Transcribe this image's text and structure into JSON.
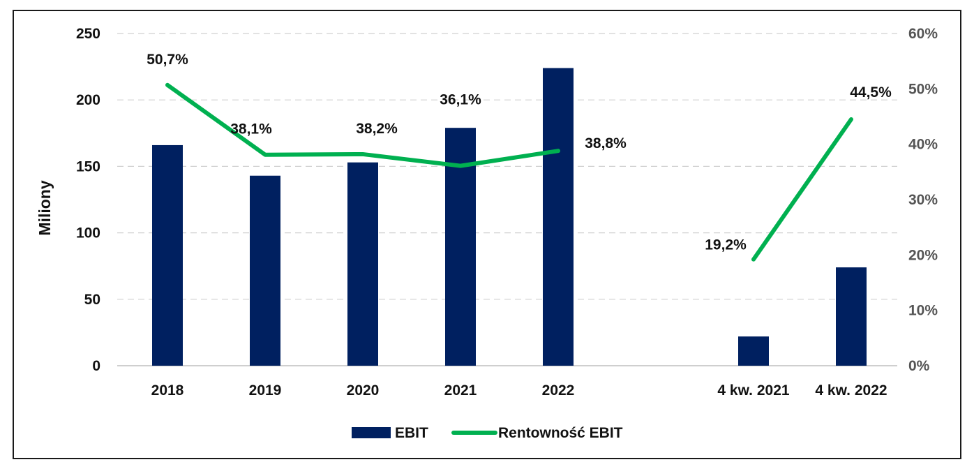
{
  "chart_data": {
    "type": "bar+line",
    "categories": [
      "2018",
      "2019",
      "2020",
      "2021",
      "2022",
      "4 kw. 2021",
      "4 kw. 2022"
    ],
    "series": [
      {
        "name": "EBIT",
        "type": "bar",
        "axis": "left",
        "color": "#002060",
        "values": [
          166,
          143,
          153,
          179,
          224,
          22,
          74
        ]
      },
      {
        "name": "Rentowność EBIT",
        "type": "line",
        "axis": "right",
        "color": "#00B050",
        "segments": [
          [
            0,
            4
          ],
          [
            5,
            6
          ]
        ],
        "values": [
          50.7,
          38.1,
          38.2,
          36.1,
          38.8,
          19.2,
          44.5
        ],
        "labels": [
          "50,7%",
          "38,1%",
          "38,2%",
          "36,1%",
          "38,8%",
          "19,2%",
          "44,5%"
        ]
      }
    ],
    "ylabel": "Miliony",
    "ylim": [
      0,
      250
    ],
    "yticks": [
      "0",
      "50",
      "100",
      "150",
      "200",
      "250"
    ],
    "y2lim": [
      0,
      60
    ],
    "y2ticks": [
      "0%",
      "10%",
      "20%",
      "30%",
      "40%",
      "50%",
      "60%"
    ],
    "grid": "horizontal dashed",
    "legend": {
      "position": "bottom",
      "entries": [
        "EBIT",
        "Rentowność EBIT"
      ]
    }
  }
}
